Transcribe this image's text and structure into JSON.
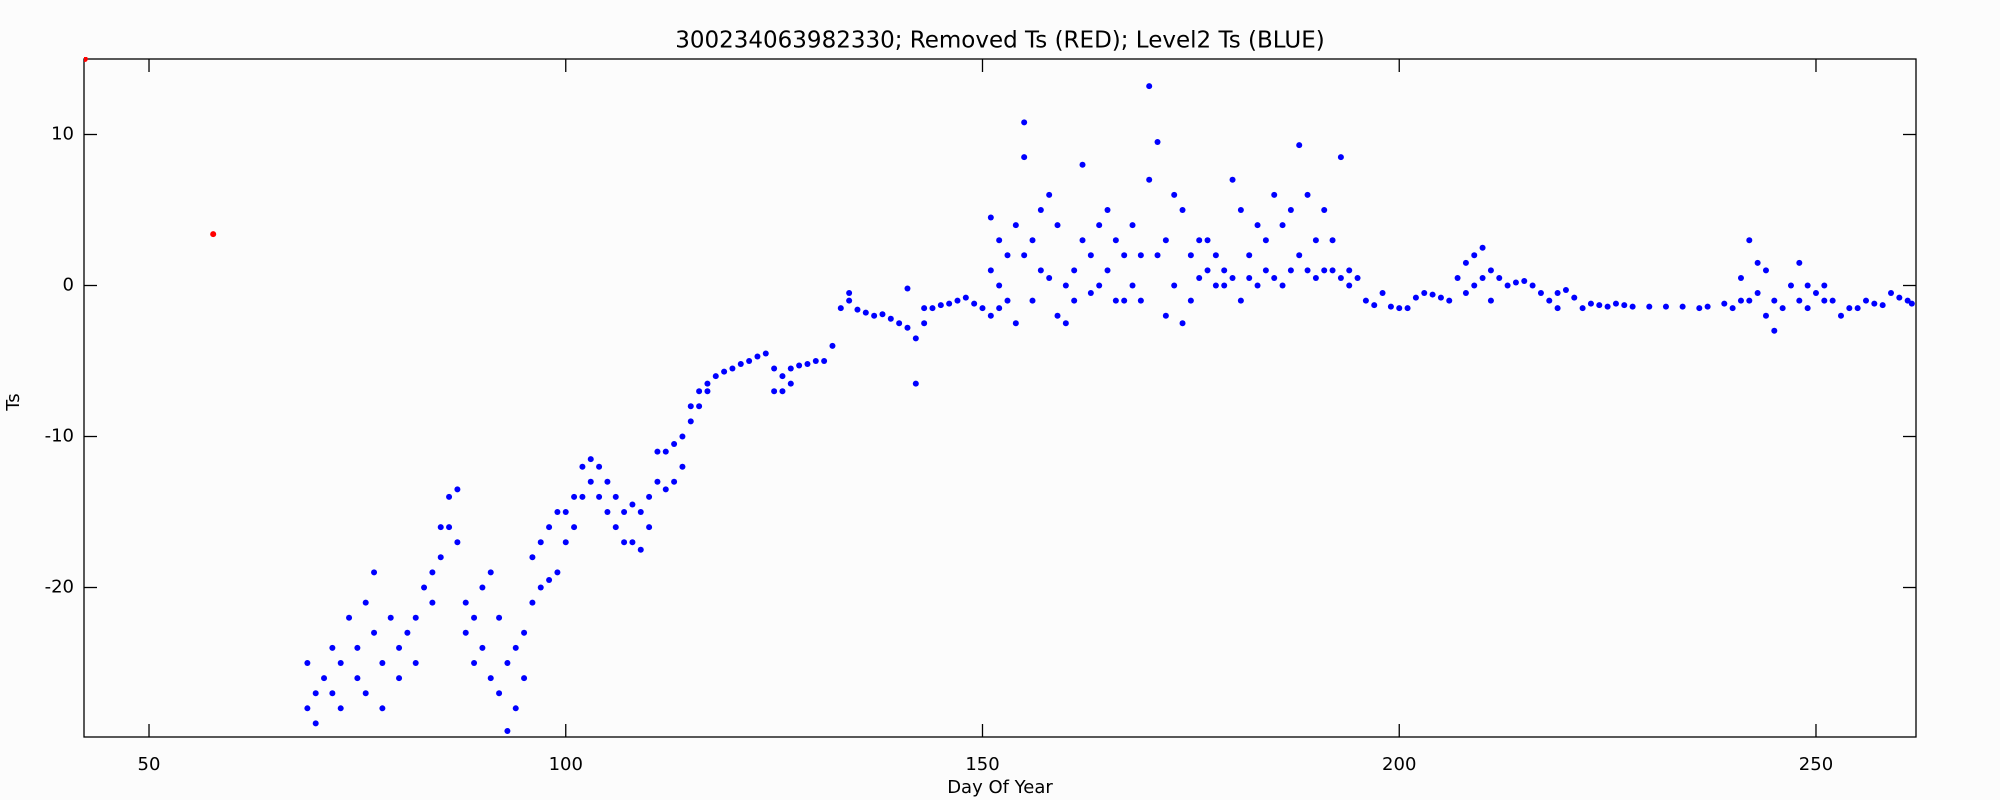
{
  "chart_data": {
    "type": "scatter",
    "title": "300234063982330; Removed Ts (RED); Level2 Ts (BLUE)",
    "x_label": "Day Of Year",
    "y_label": "Ts",
    "xlim": [
      42.2,
      262
    ],
    "ylim": [
      -29.9,
      15
    ],
    "xticks": [
      50,
      100,
      150,
      200,
      250
    ],
    "yticks": [
      -20,
      -10,
      0,
      10
    ],
    "series": [
      {
        "name": "Removed Ts",
        "color": "#ff0000",
        "x": [
          42.3,
          57.7
        ],
        "values": [
          15,
          3.4
        ]
      },
      {
        "name": "Level2 Ts",
        "color": "#0000ff",
        "x": [
          69,
          69,
          70,
          70,
          71,
          72,
          72,
          73,
          73,
          74,
          75,
          75,
          76,
          76,
          77,
          77,
          78,
          78,
          79,
          80,
          80,
          81,
          82,
          82,
          83,
          84,
          84,
          85,
          85,
          86,
          86,
          87,
          87,
          88,
          88,
          89,
          89,
          90,
          90,
          91,
          91,
          92,
          92,
          93,
          93,
          94,
          94,
          95,
          95,
          96,
          96,
          97,
          97,
          98,
          98,
          99,
          99,
          100,
          100,
          101,
          101,
          102,
          102,
          103,
          103,
          104,
          104,
          105,
          105,
          106,
          106,
          107,
          107,
          108,
          108,
          109,
          109,
          110,
          110,
          111,
          111,
          112,
          112,
          113,
          113,
          114,
          114,
          115,
          115,
          116,
          116,
          117,
          117,
          118,
          119,
          120,
          121,
          122,
          123,
          124,
          125,
          125,
          126,
          126,
          127,
          127,
          128,
          129,
          130,
          131,
          132,
          133,
          134,
          134,
          135,
          136,
          137,
          138,
          139,
          140,
          141,
          141,
          142,
          142,
          143,
          143,
          144,
          145,
          146,
          147,
          148,
          149,
          150,
          151,
          151,
          151,
          152,
          152,
          152,
          153,
          153,
          154,
          154,
          155,
          155,
          155,
          156,
          156,
          157,
          157,
          158,
          158,
          159,
          159,
          160,
          160,
          161,
          161,
          162,
          162,
          163,
          163,
          164,
          164,
          165,
          165,
          166,
          166,
          167,
          167,
          168,
          168,
          169,
          169,
          170,
          170,
          171,
          171,
          172,
          172,
          173,
          173,
          174,
          174,
          175,
          175,
          176,
          176,
          177,
          177,
          178,
          178,
          179,
          179,
          180,
          180,
          181,
          181,
          182,
          182,
          183,
          183,
          184,
          184,
          185,
          185,
          186,
          186,
          187,
          187,
          188,
          188,
          189,
          189,
          190,
          190,
          191,
          191,
          192,
          192,
          193,
          193,
          194,
          194,
          195,
          196,
          197,
          198,
          199,
          200,
          201,
          202,
          203,
          204,
          205,
          206,
          207,
          208,
          208,
          209,
          209,
          210,
          210,
          211,
          211,
          212,
          213,
          214,
          215,
          216,
          217,
          218,
          219,
          219,
          220,
          221,
          222,
          223,
          224,
          225,
          226,
          227,
          228,
          230,
          232,
          234,
          236,
          237,
          239,
          240,
          241,
          241,
          242,
          242,
          243,
          243,
          244,
          244,
          245,
          245,
          246,
          247,
          248,
          248,
          249,
          249,
          250,
          251,
          251,
          252,
          253,
          254,
          255,
          256,
          257,
          258,
          259,
          260,
          261,
          261.5
        ],
        "values": [
          -25,
          -28,
          -27,
          -29,
          -26,
          -27,
          -24,
          -28,
          -25,
          -22,
          -24,
          -26,
          -21,
          -27,
          -19,
          -23,
          -25,
          -28,
          -22,
          -24,
          -26,
          -23,
          -22,
          -25,
          -20,
          -19,
          -21,
          -16,
          -18,
          -14,
          -16,
          -13.5,
          -17,
          -21,
          -23,
          -22,
          -25,
          -20,
          -24,
          -19,
          -26,
          -22,
          -27,
          -25,
          -29.5,
          -24,
          -28,
          -23,
          -26,
          -18,
          -21,
          -17,
          -20,
          -16,
          -19.5,
          -15,
          -19,
          -15,
          -17,
          -14,
          -16,
          -12,
          -14,
          -11.5,
          -13,
          -12,
          -14,
          -13,
          -15,
          -14,
          -16,
          -15,
          -17,
          -14.5,
          -17,
          -15,
          -17.5,
          -14,
          -16,
          -11,
          -13,
          -11,
          -13.5,
          -10.5,
          -13,
          -10,
          -12,
          -8,
          -9,
          -7,
          -8,
          -6.5,
          -7,
          -6,
          -5.7,
          -5.5,
          -5.2,
          -5,
          -4.7,
          -4.5,
          -5.5,
          -7,
          -6,
          -7,
          -5.5,
          -6.5,
          -5.3,
          -5.2,
          -5,
          -5,
          -4,
          -1.5,
          -0.5,
          -1,
          -1.6,
          -1.8,
          -2,
          -1.9,
          -2.2,
          -2.5,
          -2.8,
          -0.2,
          -6.5,
          -3.5,
          -2.5,
          -1.5,
          -1.5,
          -1.3,
          -1.2,
          -1,
          -0.8,
          -1.2,
          -1.5,
          4.5,
          1,
          -2,
          3,
          0,
          -1.5,
          2,
          -1,
          4,
          -2.5,
          10.8,
          8.5,
          2,
          3,
          -1,
          5,
          1,
          6,
          0.5,
          4,
          -2,
          0,
          -2.5,
          1,
          -1,
          8,
          3,
          2,
          -0.5,
          4,
          0,
          5,
          1,
          3,
          -1,
          2,
          -1,
          4,
          0,
          2,
          -1,
          13.2,
          7,
          9.5,
          2,
          3,
          -2,
          6,
          0,
          5,
          -2.5,
          2,
          -1,
          3,
          0.5,
          3,
          1,
          2,
          0,
          1,
          0,
          7,
          0.5,
          5,
          -1,
          2,
          0.5,
          4,
          0,
          3,
          1,
          6,
          0.5,
          4,
          0,
          5,
          1,
          9.3,
          2,
          6,
          1,
          3,
          0.5,
          5,
          1,
          3,
          1,
          8.5,
          0.5,
          1,
          0,
          0.5,
          -1,
          -1.3,
          -0.5,
          -1.4,
          -1.5,
          -1.5,
          -0.8,
          -0.5,
          -0.6,
          -0.8,
          -1,
          0.5,
          1.5,
          -0.5,
          2,
          0,
          2.5,
          0.5,
          1,
          -1,
          0.5,
          0,
          0.2,
          0.3,
          0,
          -0.5,
          -1,
          -0.5,
          -1.5,
          -0.3,
          -0.8,
          -1.5,
          -1.2,
          -1.3,
          -1.4,
          -1.2,
          -1.3,
          -1.4,
          -1.4,
          -1.4,
          -1.4,
          -1.5,
          -1.4,
          -1.2,
          -1.5,
          0.5,
          -1,
          3,
          -1,
          1.5,
          -0.5,
          1,
          -2,
          -1,
          -3,
          -1.5,
          0,
          1.5,
          -1,
          0,
          -1.5,
          -0.5,
          0,
          -1,
          -1,
          -2,
          -1.5,
          -1.5,
          -1,
          -1.2,
          -1.3,
          -0.5,
          -0.8,
          -1,
          -1.2
        ]
      }
    ]
  }
}
